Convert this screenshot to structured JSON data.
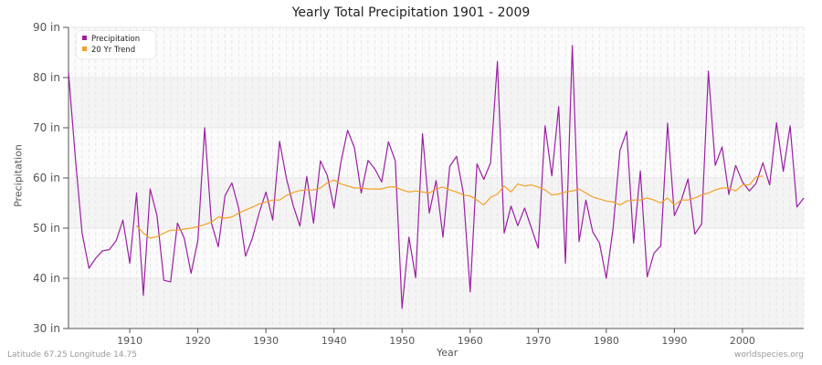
{
  "header": {
    "title": "Yearly Total Precipitation 1901 - 2009"
  },
  "footer": {
    "location": "Latitude 67.25 Longitude 14.75",
    "source": "worldspecies.org"
  },
  "colors": {
    "precipitation": "#9b1fa3",
    "trend": "#f5a025",
    "band": "#f4f4f4",
    "grid": "#e2e2e2"
  },
  "chart_data": {
    "type": "line",
    "title": "Yearly Total Precipitation 1901 - 2009",
    "xlabel": "Year",
    "ylabel": "Precipitation",
    "ylim": [
      30,
      90
    ],
    "xlim": [
      1901,
      2009
    ],
    "y_ticks": [
      "30 in",
      "40 in",
      "50 in",
      "60 in",
      "70 in",
      "80 in",
      "90 in"
    ],
    "x_ticks": [
      1910,
      1920,
      1930,
      1940,
      1950,
      1960,
      1970,
      1980,
      1990,
      2000
    ],
    "legend": [
      "Precipitation",
      "20 Yr Trend"
    ],
    "legend_position": "top-left",
    "grid": true,
    "series": [
      {
        "name": "Precipitation",
        "x_start": 1901,
        "values": [
          81,
          64,
          49,
          42,
          44,
          45.5,
          45.7,
          47.5,
          51.6,
          43,
          57,
          36.6,
          57.8,
          52.5,
          39.6,
          39.3,
          51,
          48,
          41,
          47.5,
          70,
          51,
          46.3,
          56.5,
          59,
          54,
          44.4,
          48,
          53,
          57.2,
          51.6,
          67.3,
          60,
          54.5,
          50.4,
          60.3,
          51,
          63.4,
          60.6,
          54,
          63,
          69.5,
          66,
          57,
          63.5,
          61.8,
          59.2,
          67.2,
          63.4,
          34,
          48.2,
          40.1,
          68.8,
          53,
          59.5,
          48.2,
          62.3,
          64.3,
          57,
          37.3,
          62.8,
          59.7,
          63,
          83.2,
          49,
          54.4,
          50.5,
          54,
          50,
          46,
          70.4,
          60.4,
          74.2,
          43,
          86.4,
          47.3,
          55.6,
          49.3,
          47,
          40,
          50,
          65.5,
          69.3,
          47,
          61.4,
          40.3,
          45,
          46.5,
          70.9,
          52.5,
          55.5,
          59.8,
          48.8,
          50.8,
          81.3,
          62.5,
          66.2,
          56.7,
          62.5,
          59.2,
          57.4,
          58.9,
          63,
          58.6,
          71,
          61.3,
          70.4,
          54.2,
          56
        ]
      },
      {
        "name": "20 Yr Trend",
        "x_start": 1911,
        "values": [
          50.5,
          49,
          48,
          48.3,
          49,
          49.6,
          49.6,
          49.8,
          50,
          50.3,
          50.7,
          51.2,
          52.2,
          52,
          52.2,
          53,
          53.6,
          54.2,
          54.8,
          55.2,
          55.6,
          55.6,
          56.5,
          57.1,
          57.5,
          57.6,
          57.6,
          58,
          59,
          59.6,
          58.8,
          58.4,
          58,
          58,
          57.8,
          57.8,
          57.8,
          58.2,
          58.2,
          57.6,
          57.2,
          57.4,
          57.2,
          57,
          57.8,
          58.2,
          57.6,
          57.2,
          56.6,
          56.4,
          55.6,
          54.6,
          56.1,
          56.8,
          58.4,
          57.2,
          58.8,
          58.4,
          58.6,
          58.2,
          57.6,
          56.6,
          56.8,
          57.2,
          57.4,
          57.8,
          57,
          56.2,
          55.8,
          55.4,
          55.2,
          54.6,
          55.4,
          55.6,
          55.6,
          56,
          55.6,
          55,
          56,
          54.6,
          55.6,
          55.6,
          56,
          56.6,
          57,
          57.6,
          58,
          58,
          57.4,
          58.6,
          58.6,
          60.2,
          60.4
        ]
      }
    ]
  }
}
